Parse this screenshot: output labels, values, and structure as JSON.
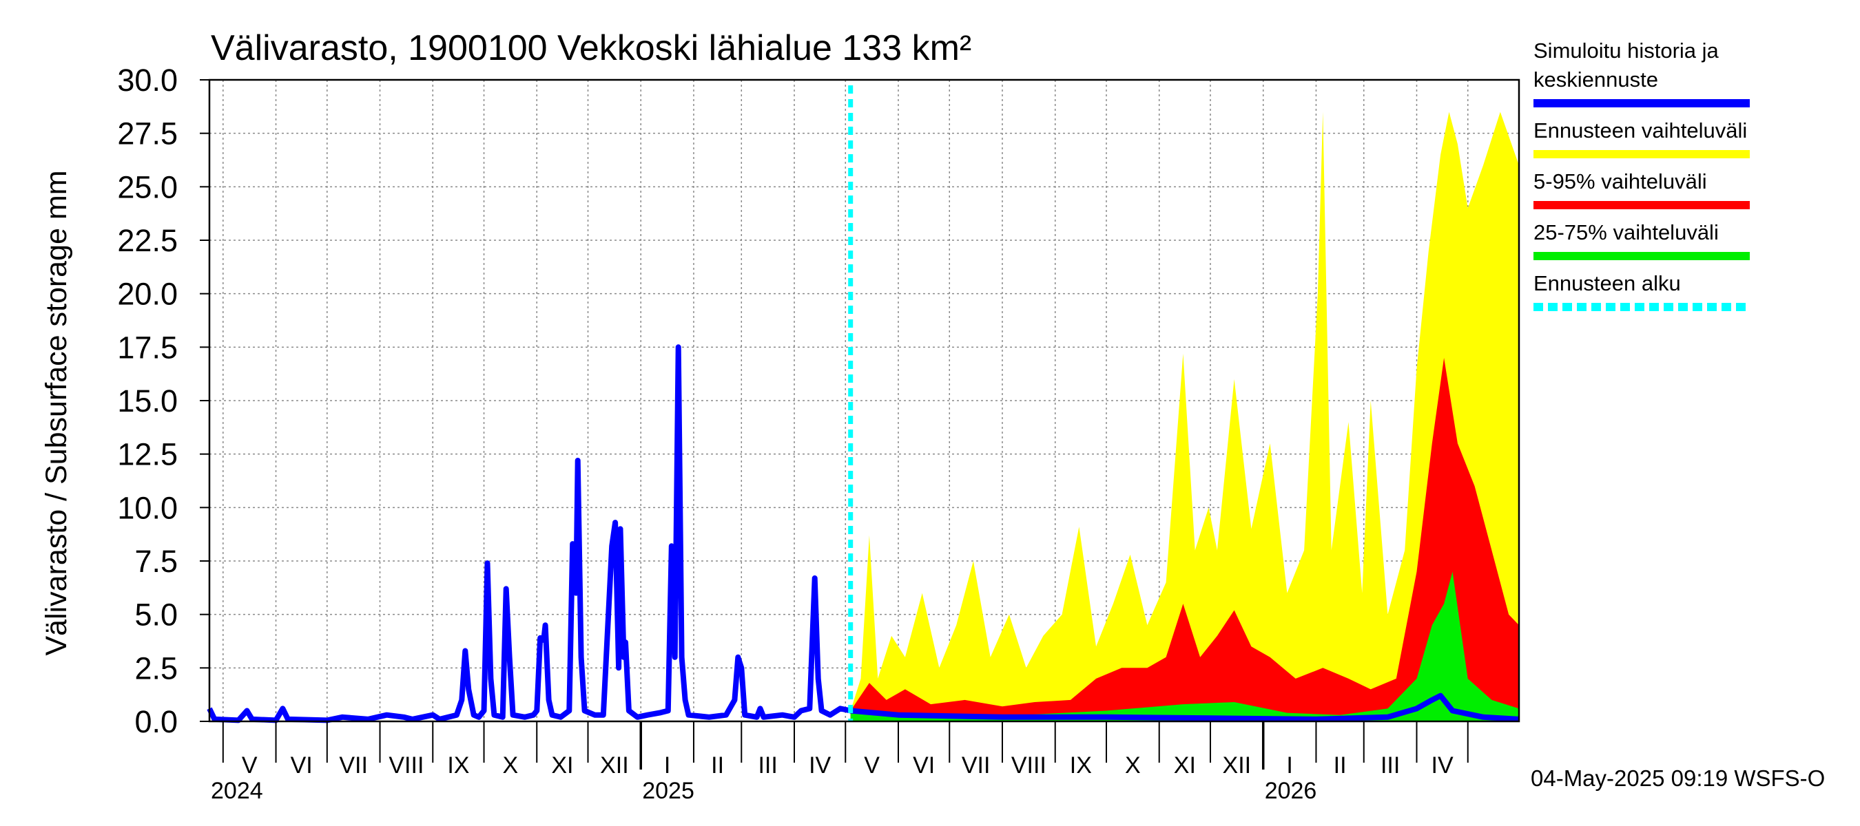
{
  "chart_data": {
    "type": "area",
    "title": "Välivarasto, 1900100 Vekkoski lähialue 133 km²",
    "ylabel": "Välivarasto / Subsurface storage  mm",
    "ylim": [
      0,
      30
    ],
    "y_ticks": [
      "0.0",
      "2.5",
      "5.0",
      "7.5",
      "10.0",
      "12.5",
      "15.0",
      "17.5",
      "20.0",
      "22.5",
      "25.0",
      "27.5",
      "30.0"
    ],
    "x_range": [
      "2024-04-23",
      "2026-05-31"
    ],
    "months": [
      {
        "label": "V",
        "start": "2024-05-01"
      },
      {
        "label": "VI",
        "start": "2024-06-01"
      },
      {
        "label": "VII",
        "start": "2024-07-01"
      },
      {
        "label": "VIII",
        "start": "2024-08-01"
      },
      {
        "label": "IX",
        "start": "2024-09-01"
      },
      {
        "label": "X",
        "start": "2024-10-01"
      },
      {
        "label": "XI",
        "start": "2024-11-01"
      },
      {
        "label": "XII",
        "start": "2024-12-01"
      },
      {
        "label": "I",
        "start": "2025-01-01"
      },
      {
        "label": "II",
        "start": "2025-02-01"
      },
      {
        "label": "III",
        "start": "2025-03-01"
      },
      {
        "label": "IV",
        "start": "2025-04-01"
      },
      {
        "label": "V",
        "start": "2025-05-01"
      },
      {
        "label": "VI",
        "start": "2025-06-01"
      },
      {
        "label": "VII",
        "start": "2025-07-01"
      },
      {
        "label": "VIII",
        "start": "2025-08-01"
      },
      {
        "label": "IX",
        "start": "2025-09-01"
      },
      {
        "label": "X",
        "start": "2025-10-01"
      },
      {
        "label": "XI",
        "start": "2025-11-01"
      },
      {
        "label": "XII",
        "start": "2025-12-01"
      },
      {
        "label": "I",
        "start": "2026-01-01"
      },
      {
        "label": "II",
        "start": "2026-02-01"
      },
      {
        "label": "III",
        "start": "2026-03-01"
      },
      {
        "label": "IV",
        "start": "2026-04-01"
      },
      {
        "label": "",
        "start": "2026-05-01"
      }
    ],
    "years": [
      {
        "label": "2024",
        "start": "2024-04-23"
      },
      {
        "label": "2025",
        "start": "2025-01-01"
      },
      {
        "label": "2026",
        "start": "2026-01-01"
      }
    ],
    "forecast_start": "2025-05-04",
    "series": [
      {
        "name": "Simuloitu historia ja keskiennuste",
        "color": "#0000ff",
        "kind": "line",
        "points": [
          [
            "2024-04-23",
            0.6
          ],
          [
            "2024-04-26",
            0.1
          ],
          [
            "2024-05-10",
            0.05
          ],
          [
            "2024-05-15",
            0.5
          ],
          [
            "2024-05-18",
            0.1
          ],
          [
            "2024-06-01",
            0.05
          ],
          [
            "2024-06-05",
            0.6
          ],
          [
            "2024-06-08",
            0.1
          ],
          [
            "2024-07-01",
            0.05
          ],
          [
            "2024-07-10",
            0.2
          ],
          [
            "2024-07-25",
            0.1
          ],
          [
            "2024-08-05",
            0.3
          ],
          [
            "2024-08-15",
            0.2
          ],
          [
            "2024-08-20",
            0.1
          ],
          [
            "2024-09-01",
            0.3
          ],
          [
            "2024-09-05",
            0.1
          ],
          [
            "2024-09-15",
            0.3
          ],
          [
            "2024-09-18",
            1.0
          ],
          [
            "2024-09-20",
            3.3
          ],
          [
            "2024-09-22",
            1.5
          ],
          [
            "2024-09-25",
            0.3
          ],
          [
            "2024-09-28",
            0.2
          ],
          [
            "2024-10-01",
            0.5
          ],
          [
            "2024-10-03",
            7.4
          ],
          [
            "2024-10-05",
            2.0
          ],
          [
            "2024-10-07",
            0.3
          ],
          [
            "2024-10-12",
            0.2
          ],
          [
            "2024-10-14",
            6.2
          ],
          [
            "2024-10-16",
            3.0
          ],
          [
            "2024-10-18",
            0.3
          ],
          [
            "2024-10-25",
            0.2
          ],
          [
            "2024-10-30",
            0.3
          ],
          [
            "2024-11-01",
            0.5
          ],
          [
            "2024-11-03",
            3.9
          ],
          [
            "2024-11-05",
            3.8
          ],
          [
            "2024-11-06",
            4.5
          ],
          [
            "2024-11-08",
            1.0
          ],
          [
            "2024-11-10",
            0.3
          ],
          [
            "2024-11-15",
            0.2
          ],
          [
            "2024-11-20",
            0.5
          ],
          [
            "2024-11-22",
            8.3
          ],
          [
            "2024-11-24",
            6.0
          ],
          [
            "2024-11-25",
            12.2
          ],
          [
            "2024-11-27",
            3.0
          ],
          [
            "2024-11-29",
            0.5
          ],
          [
            "2024-12-05",
            0.3
          ],
          [
            "2024-12-10",
            0.3
          ],
          [
            "2024-12-15",
            8.2
          ],
          [
            "2024-12-17",
            9.3
          ],
          [
            "2024-12-19",
            2.5
          ],
          [
            "2024-12-20",
            9.0
          ],
          [
            "2024-12-22",
            3.0
          ],
          [
            "2024-12-23",
            3.7
          ],
          [
            "2024-12-25",
            0.5
          ],
          [
            "2024-12-30",
            0.2
          ],
          [
            "2025-01-05",
            0.3
          ],
          [
            "2025-01-12",
            0.4
          ],
          [
            "2025-01-17",
            0.5
          ],
          [
            "2025-01-19",
            8.2
          ],
          [
            "2025-01-21",
            3.0
          ],
          [
            "2025-01-23",
            17.5
          ],
          [
            "2025-01-25",
            3.0
          ],
          [
            "2025-01-27",
            1.0
          ],
          [
            "2025-01-29",
            0.3
          ],
          [
            "2025-02-10",
            0.2
          ],
          [
            "2025-02-20",
            0.3
          ],
          [
            "2025-02-25",
            1.0
          ],
          [
            "2025-02-27",
            3.0
          ],
          [
            "2025-03-01",
            2.5
          ],
          [
            "2025-03-03",
            0.3
          ],
          [
            "2025-03-10",
            0.2
          ],
          [
            "2025-03-12",
            0.6
          ],
          [
            "2025-03-14",
            0.2
          ],
          [
            "2025-03-25",
            0.3
          ],
          [
            "2025-04-01",
            0.2
          ],
          [
            "2025-04-05",
            0.5
          ],
          [
            "2025-04-10",
            0.6
          ],
          [
            "2025-04-13",
            6.7
          ],
          [
            "2025-04-15",
            2.0
          ],
          [
            "2025-04-17",
            0.5
          ],
          [
            "2025-04-22",
            0.3
          ],
          [
            "2025-04-28",
            0.6
          ],
          [
            "2025-05-04",
            0.5
          ],
          [
            "2025-06-01",
            0.3
          ],
          [
            "2025-08-01",
            0.2
          ],
          [
            "2025-10-01",
            0.2
          ],
          [
            "2025-12-01",
            0.15
          ],
          [
            "2026-02-01",
            0.1
          ],
          [
            "2026-03-15",
            0.2
          ],
          [
            "2026-04-01",
            0.6
          ],
          [
            "2026-04-10",
            1.0
          ],
          [
            "2026-04-15",
            1.2
          ],
          [
            "2026-04-22",
            0.5
          ],
          [
            "2026-05-10",
            0.2
          ],
          [
            "2026-05-31",
            0.1
          ]
        ]
      },
      {
        "name": "Ennusteen vaihteluväli",
        "color": "#ffff00",
        "kind": "area",
        "points": [
          [
            "2025-05-04",
            0.5
          ],
          [
            "2025-05-10",
            2.0
          ],
          [
            "2025-05-15",
            8.7
          ],
          [
            "2025-05-20",
            2.0
          ],
          [
            "2025-05-28",
            4.0
          ],
          [
            "2025-06-05",
            3.0
          ],
          [
            "2025-06-15",
            6.0
          ],
          [
            "2025-06-25",
            2.5
          ],
          [
            "2025-07-05",
            4.5
          ],
          [
            "2025-07-15",
            7.5
          ],
          [
            "2025-07-25",
            3.0
          ],
          [
            "2025-08-05",
            5.0
          ],
          [
            "2025-08-15",
            2.5
          ],
          [
            "2025-08-25",
            4.0
          ],
          [
            "2025-09-05",
            5.0
          ],
          [
            "2025-09-15",
            9.1
          ],
          [
            "2025-09-25",
            3.5
          ],
          [
            "2025-10-05",
            5.5
          ],
          [
            "2025-10-15",
            7.8
          ],
          [
            "2025-10-25",
            4.5
          ],
          [
            "2025-11-05",
            6.5
          ],
          [
            "2025-11-15",
            17.2
          ],
          [
            "2025-11-22",
            8.0
          ],
          [
            "2025-11-30",
            10.0
          ],
          [
            "2025-12-05",
            8.0
          ],
          [
            "2025-12-15",
            16.0
          ],
          [
            "2025-12-25",
            9.0
          ],
          [
            "2026-01-05",
            13.0
          ],
          [
            "2026-01-15",
            6.0
          ],
          [
            "2026-01-25",
            8.0
          ],
          [
            "2026-02-02",
            20.0
          ],
          [
            "2026-02-05",
            28.5
          ],
          [
            "2026-02-10",
            8.0
          ],
          [
            "2026-02-20",
            14.0
          ],
          [
            "2026-02-28",
            6.0
          ],
          [
            "2026-03-05",
            15.0
          ],
          [
            "2026-03-15",
            5.0
          ],
          [
            "2026-03-25",
            8.0
          ],
          [
            "2026-04-01",
            16.5
          ],
          [
            "2026-04-08",
            22.0
          ],
          [
            "2026-04-15",
            26.5
          ],
          [
            "2026-04-20",
            28.5
          ],
          [
            "2026-04-25",
            27.0
          ],
          [
            "2026-05-01",
            24.0
          ],
          [
            "2026-05-10",
            26.0
          ],
          [
            "2026-05-20",
            28.5
          ],
          [
            "2026-05-31",
            26.0
          ]
        ]
      },
      {
        "name": "5-95% vaihteluväli",
        "color": "#ff0000",
        "kind": "area",
        "points": [
          [
            "2025-05-04",
            0.5
          ],
          [
            "2025-05-15",
            1.8
          ],
          [
            "2025-05-25",
            1.0
          ],
          [
            "2025-06-05",
            1.5
          ],
          [
            "2025-06-20",
            0.8
          ],
          [
            "2025-07-10",
            1.0
          ],
          [
            "2025-08-01",
            0.7
          ],
          [
            "2025-08-20",
            0.9
          ],
          [
            "2025-09-10",
            1.0
          ],
          [
            "2025-09-25",
            2.0
          ],
          [
            "2025-10-10",
            2.5
          ],
          [
            "2025-10-25",
            2.5
          ],
          [
            "2025-11-05",
            3.0
          ],
          [
            "2025-11-15",
            5.5
          ],
          [
            "2025-11-25",
            3.0
          ],
          [
            "2025-12-05",
            4.0
          ],
          [
            "2025-12-15",
            5.2
          ],
          [
            "2025-12-25",
            3.5
          ],
          [
            "2026-01-05",
            3.0
          ],
          [
            "2026-01-20",
            2.0
          ],
          [
            "2026-02-05",
            2.5
          ],
          [
            "2026-02-20",
            2.0
          ],
          [
            "2026-03-05",
            1.5
          ],
          [
            "2026-03-20",
            2.0
          ],
          [
            "2026-04-01",
            7.0
          ],
          [
            "2026-04-10",
            13.0
          ],
          [
            "2026-04-17",
            17.0
          ],
          [
            "2026-04-25",
            13.0
          ],
          [
            "2026-05-05",
            11.0
          ],
          [
            "2026-05-15",
            8.0
          ],
          [
            "2026-05-25",
            5.0
          ],
          [
            "2026-05-31",
            4.5
          ]
        ]
      },
      {
        "name": "25-75% vaihteluväli",
        "color": "#00ee00",
        "kind": "area",
        "points": [
          [
            "2025-05-04",
            0.4
          ],
          [
            "2025-06-01",
            0.3
          ],
          [
            "2025-08-01",
            0.25
          ],
          [
            "2025-10-01",
            0.5
          ],
          [
            "2025-11-15",
            0.8
          ],
          [
            "2025-12-15",
            0.9
          ],
          [
            "2026-01-15",
            0.4
          ],
          [
            "2026-02-15",
            0.3
          ],
          [
            "2026-03-15",
            0.6
          ],
          [
            "2026-04-01",
            2.0
          ],
          [
            "2026-04-10",
            4.5
          ],
          [
            "2026-04-17",
            5.5
          ],
          [
            "2026-04-22",
            7.0
          ],
          [
            "2026-05-01",
            2.0
          ],
          [
            "2026-05-15",
            1.0
          ],
          [
            "2026-05-31",
            0.6
          ]
        ]
      }
    ],
    "legend": [
      {
        "lines": [
          "Simuloitu historia ja",
          "keskiennuste"
        ],
        "color": "#0000ff",
        "style": "solid"
      },
      {
        "lines": [
          "Ennusteen vaihteluväli"
        ],
        "color": "#ffff00",
        "style": "solid"
      },
      {
        "lines": [
          "5-95% vaihteluväli"
        ],
        "color": "#ff0000",
        "style": "solid"
      },
      {
        "lines": [
          "25-75% vaihteluväli"
        ],
        "color": "#00ee00",
        "style": "solid"
      },
      {
        "lines": [
          "Ennusteen alku"
        ],
        "color": "#00ffff",
        "style": "dashed"
      }
    ],
    "legend_position": "right",
    "grid": true,
    "timestamp": "04-May-2025 09:19 WSFS-O"
  }
}
